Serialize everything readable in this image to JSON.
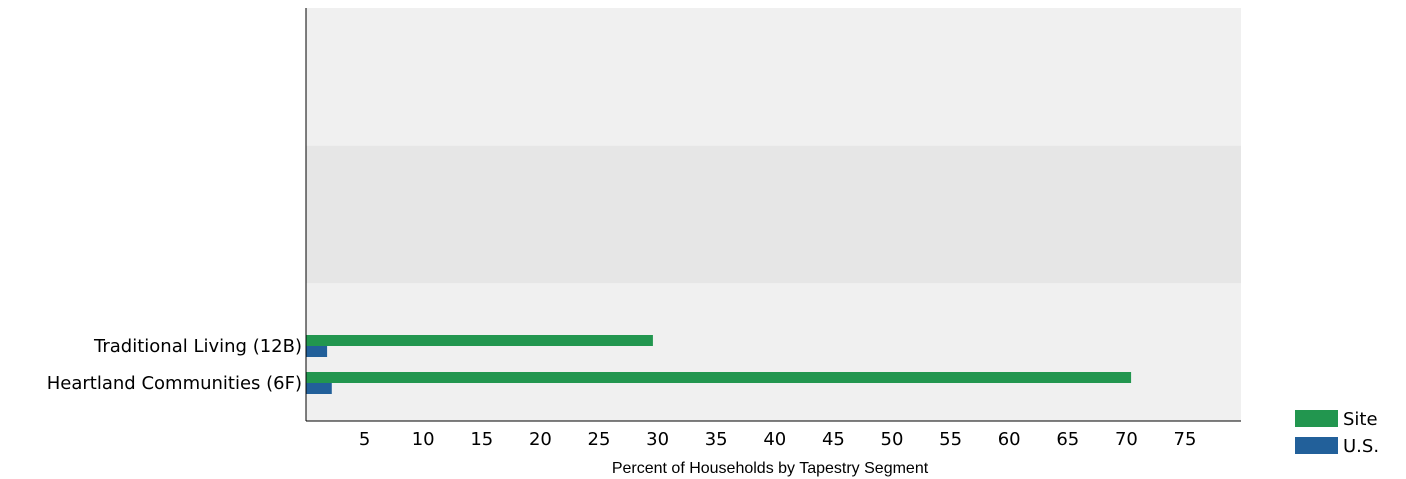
{
  "chart_data": {
    "type": "bar",
    "orientation": "horizontal",
    "categories": [
      "Traditional Living (12B)",
      "Heartland Communities (6F)"
    ],
    "series": [
      {
        "name": "Site",
        "values": [
          29.6,
          70.4
        ],
        "color": "#22964f"
      },
      {
        "name": "U.S.",
        "values": [
          1.8,
          2.2
        ],
        "color": "#22609a"
      }
    ],
    "xlabel": "Percent of Households by Tapestry Segment",
    "ylabel": "",
    "xlim": [
      0,
      80
    ],
    "xticks": [
      "5",
      "10",
      "15",
      "20",
      "25",
      "30",
      "35",
      "40",
      "45",
      "50",
      "55",
      "60",
      "65",
      "70",
      "75"
    ],
    "legend": "bottom-right",
    "grid": false,
    "band_colors": [
      "#f0f0f0",
      "#e6e6e6"
    ]
  }
}
